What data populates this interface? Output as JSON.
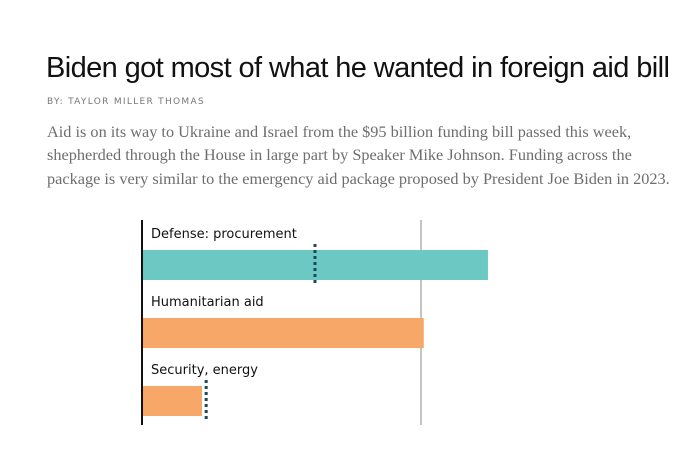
{
  "article": {
    "title": "Biden got most of what he wanted in foreign aid bill",
    "byline": "BY: TAYLOR MILLER THOMAS",
    "body": "Aid is on its way to Ukraine and Israel from the $95 billion funding bill passed this week, shepherded through the House in large part by Speaker Mike Johnson. Funding across the package is very similar to the emergency aid package proposed by President Joe Biden in 2023."
  },
  "chart_data": {
    "type": "bar",
    "orientation": "horizontal",
    "categories": [
      "Defense: procurement",
      "Humanitarian aid",
      "Security, energy"
    ],
    "values": [
      1.24,
      1.01,
      0.215
    ],
    "markers": [
      0.62,
      null,
      0.23
    ],
    "reference_line": 1.0,
    "colors": [
      "#6cc8c2",
      "#f7a869",
      "#f7a869"
    ],
    "marker_color": "#1d4a5a",
    "xlim": [
      0,
      1.3
    ],
    "grid": false,
    "title": "",
    "xlabel": "",
    "ylabel": ""
  }
}
